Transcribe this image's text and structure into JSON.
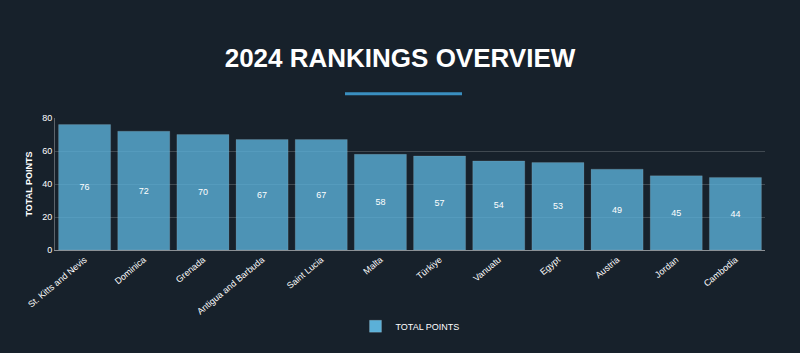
{
  "chart_data": {
    "type": "bar",
    "title": "2024 RANKINGS OVERVIEW",
    "y_label": "TOTAL POINTS",
    "categories": [
      "St. Kitts and Nevis",
      "Dominica",
      "Grenada",
      "Antigua and Barbuda",
      "Saint Lucia",
      "Malta",
      "Türkiye",
      "Vanuatu",
      "Egypt",
      "Austria",
      "Jordan",
      "Cambodia"
    ],
    "series": [
      {
        "name": "TOTAL POINTS",
        "color": "#5bb0d8",
        "values": [
          76,
          72,
          70,
          67,
          67,
          58,
          57,
          54,
          53,
          49,
          45,
          44
        ]
      }
    ],
    "ylim": [
      0,
      80
    ],
    "yticks": [
      0,
      20,
      40,
      60,
      80
    ],
    "grid": true,
    "legend": "bottom",
    "data_labels": true
  }
}
